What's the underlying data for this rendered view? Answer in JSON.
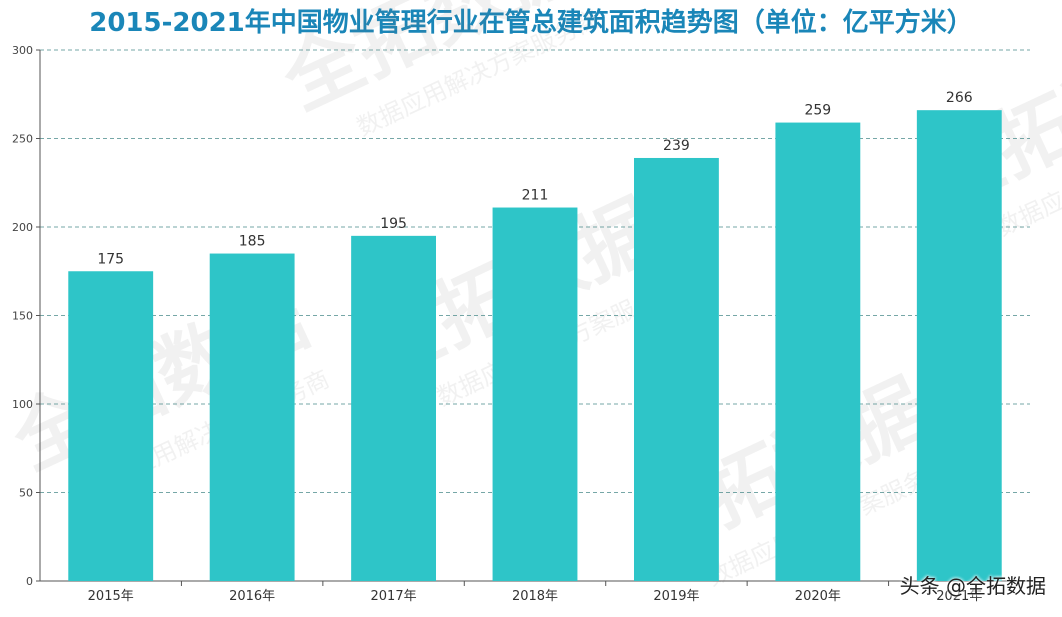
{
  "chart_data": {
    "type": "bar",
    "title": "2015-2021年中国物业管理行业在管总建筑面积趋势图（单位：亿平方米）",
    "categories": [
      "2015年",
      "2016年",
      "2017年",
      "2018年",
      "2019年",
      "2020年",
      "2021年"
    ],
    "values": [
      175,
      185,
      195,
      211,
      239,
      259,
      266
    ],
    "ylim": [
      0,
      300
    ],
    "yticks": [
      0,
      50,
      100,
      150,
      200,
      250,
      300
    ],
    "grid": true,
    "bar_color": "#2ec5c8",
    "title_color": "#1a86b8"
  },
  "watermark": {
    "main": "全拓数据",
    "sub": "数据应用解决方案服务商"
  },
  "credit": "头条 @全拓数据"
}
